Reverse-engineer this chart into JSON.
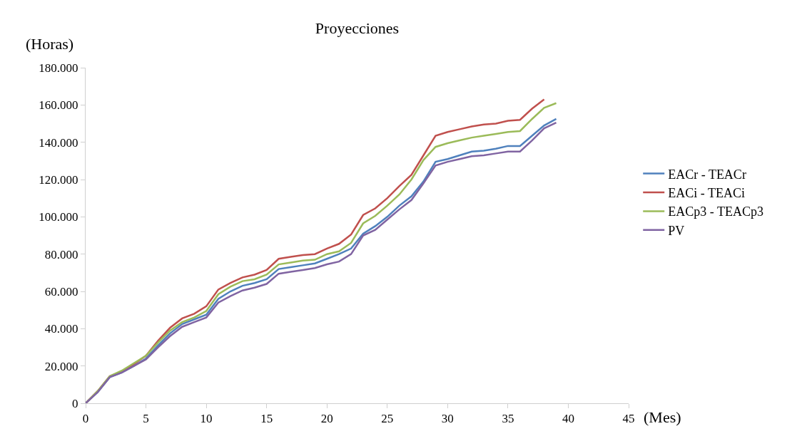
{
  "chart_data": {
    "type": "line",
    "title": "Proyecciones",
    "xlabel": "(Mes)",
    "ylabel": "(Horas)",
    "x": [
      0,
      1,
      2,
      3,
      4,
      5,
      6,
      7,
      8,
      9,
      10,
      11,
      12,
      13,
      14,
      15,
      16,
      17,
      18,
      19,
      20,
      21,
      22,
      23,
      24,
      25,
      26,
      27,
      28,
      29,
      30,
      31,
      32,
      33,
      34,
      35,
      36,
      37,
      38,
      39
    ],
    "series": [
      {
        "name": "EACr - TEACr",
        "color": "#4f81bd",
        "values": [
          0,
          6000,
          14000,
          16500,
          20000,
          24000,
          31000,
          37500,
          42500,
          45000,
          47500,
          56000,
          60000,
          63000,
          64500,
          66500,
          72000,
          73000,
          74000,
          75000,
          77500,
          80000,
          83000,
          91000,
          95000,
          100000,
          106000,
          111000,
          119000,
          129500,
          131000,
          133000,
          135000,
          135500,
          136500,
          138000,
          138000,
          143500,
          149000,
          152500
        ]
      },
      {
        "name": "EACi - TEACi",
        "color": "#c0504d",
        "values": [
          0,
          6500,
          14500,
          17000,
          21000,
          25500,
          33500,
          40500,
          45500,
          48000,
          52000,
          61000,
          64500,
          67500,
          69000,
          71500,
          77500,
          78500,
          79500,
          80000,
          83000,
          85500,
          90500,
          101000,
          104500,
          110000,
          116500,
          122500,
          133000,
          143500,
          145500,
          147000,
          148500,
          149500,
          150000,
          151500,
          152000,
          158000,
          163000,
          null
        ]
      },
      {
        "name": "EACp3 - TEACp3",
        "color": "#9bbb59",
        "values": [
          0,
          6500,
          14500,
          17500,
          21500,
          25500,
          32500,
          39000,
          43500,
          46000,
          49500,
          58500,
          62500,
          65500,
          66500,
          69000,
          74500,
          75500,
          76500,
          77000,
          80000,
          81500,
          86000,
          96500,
          100500,
          106000,
          112000,
          120000,
          130500,
          137500,
          139500,
          141000,
          142500,
          143500,
          144500,
          145500,
          146000,
          152500,
          158500,
          161000
        ]
      },
      {
        "name": "PV",
        "color": "#8064a2",
        "values": [
          0,
          6000,
          14000,
          16500,
          20000,
          23500,
          30000,
          36000,
          41000,
          43500,
          46000,
          54000,
          57500,
          60500,
          62000,
          64000,
          69500,
          70500,
          71500,
          72500,
          74500,
          76000,
          80000,
          90000,
          93000,
          98500,
          104000,
          109000,
          118000,
          127500,
          129500,
          131000,
          132500,
          133000,
          134000,
          135000,
          135000,
          141000,
          147500,
          150500
        ]
      }
    ],
    "xlim": [
      0,
      45
    ],
    "xticks": [
      0,
      5,
      10,
      15,
      20,
      25,
      30,
      35,
      40,
      45
    ],
    "ylim": [
      0,
      180000
    ],
    "yticks": [
      0,
      {
        "value": 20000,
        "label": "20.000"
      },
      {
        "value": 40000,
        "label": "40.000"
      },
      {
        "value": 60000,
        "label": "60.000"
      },
      {
        "value": 80000,
        "label": "80.000"
      },
      {
        "value": 100000,
        "label": "100.000"
      },
      {
        "value": 120000,
        "label": "120.000"
      },
      {
        "value": 140000,
        "label": "140.000"
      },
      {
        "value": 160000,
        "label": "160.000"
      },
      {
        "value": 180000,
        "label": "180.000"
      }
    ],
    "legend": "right",
    "marker": "none",
    "line_style": "solid"
  }
}
